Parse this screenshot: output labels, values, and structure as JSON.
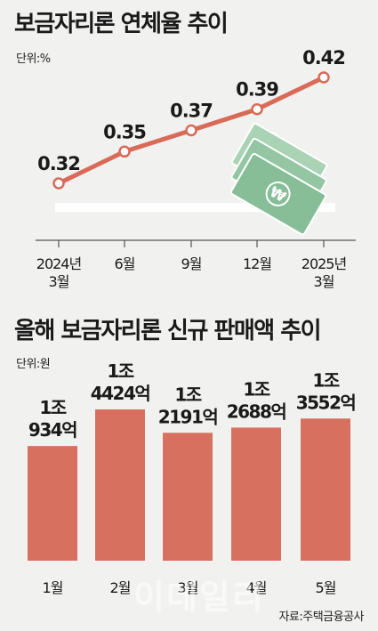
{
  "colors": {
    "line": "#d96a58",
    "bar": "#d8705f",
    "band": "#ffffff",
    "axis": "#555555",
    "money": "#8fc4a0"
  },
  "watermark": "이데일리",
  "source": "자료:주택금융공사",
  "chart_data": [
    {
      "type": "line",
      "title": "보금자리론 연체율 추이",
      "unit_label": "단위:%",
      "x": [
        "2024년 3월",
        "6월",
        "9월",
        "12월",
        "2025년 3월"
      ],
      "x_tick_lines": [
        [
          "2024년",
          "3월"
        ],
        [
          "6월"
        ],
        [
          "9월"
        ],
        [
          "12월"
        ],
        [
          "2025년",
          "3월"
        ]
      ],
      "values": [
        0.32,
        0.35,
        0.37,
        0.39,
        0.42
      ],
      "value_labels": [
        "0.32",
        "0.35",
        "0.37",
        "0.39",
        "0.42"
      ],
      "ylim": [
        0.25,
        0.43
      ],
      "grid": false,
      "decoration_icon": "money-bills-icon"
    },
    {
      "type": "bar",
      "title": "올해 보금자리론 신규 판매액 추이",
      "unit_label": "단위:원",
      "categories": [
        "1월",
        "2월",
        "3월",
        "4월",
        "5월"
      ],
      "values": [
        1.0934,
        1.4424,
        1.2191,
        1.2688,
        1.3552
      ],
      "value_unit": "조",
      "value_labels": [
        [
          "1조",
          "934억"
        ],
        [
          "1조",
          "4424억"
        ],
        [
          "1조",
          "2191억"
        ],
        [
          "1조",
          "2688억"
        ],
        [
          "1조",
          "3552억"
        ]
      ],
      "ylim": [
        0,
        1.4424
      ],
      "grid": false
    }
  ]
}
